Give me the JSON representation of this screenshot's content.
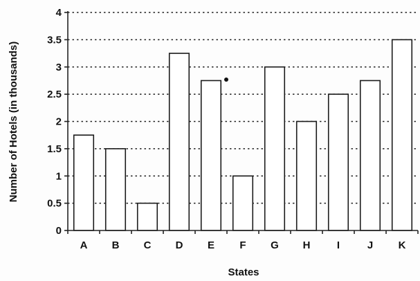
{
  "chart_data": {
    "type": "bar",
    "title": "",
    "xlabel": "States",
    "ylabel": "Number of Hotels (in thousands)",
    "categories": [
      "A",
      "B",
      "C",
      "D",
      "E",
      "F",
      "G",
      "H",
      "I",
      "J",
      "K"
    ],
    "values": [
      1.75,
      1.5,
      0.5,
      3.25,
      2.75,
      1.0,
      3.0,
      2.0,
      2.5,
      2.75,
      3.5
    ],
    "ylim": [
      0,
      4
    ],
    "yticks": [
      0,
      0.5,
      1,
      1.5,
      2,
      2.5,
      3,
      3.5,
      4
    ],
    "ytick_labels": [
      "0",
      "0.5",
      "1",
      "1.5",
      "2",
      "2.5",
      "3",
      "3.5",
      "4"
    ],
    "grid": "horizontal dotted",
    "legend": "none"
  },
  "colors": {
    "bar_fill": "#ffffff",
    "bar_stroke": "#1a1a1a",
    "text": "#111111",
    "background": "#fdfdfd"
  }
}
